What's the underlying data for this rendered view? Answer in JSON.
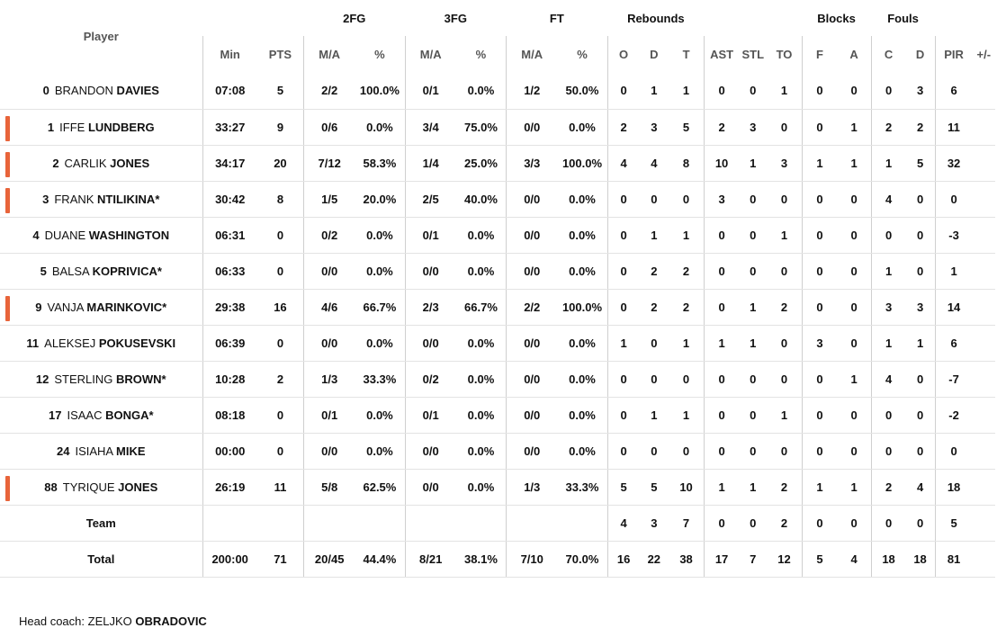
{
  "headers": {
    "player": "Player",
    "groups": {
      "fg2": "2FG",
      "fg3": "3FG",
      "ft": "FT",
      "reb": "Rebounds",
      "blk": "Blocks",
      "fouls": "Fouls"
    },
    "cols": [
      "Min",
      "PTS",
      "M/A",
      "%",
      "M/A",
      "%",
      "M/A",
      "%",
      "O",
      "D",
      "T",
      "AST",
      "STL",
      "TO",
      "F",
      "A",
      "C",
      "D",
      "PIR",
      "+/-"
    ]
  },
  "players": [
    {
      "num": "0",
      "first": "BRANDON",
      "last": "DAVIES",
      "marker": false,
      "stats": [
        "07:08",
        "5",
        "2/2",
        "100.0%",
        "0/1",
        "0.0%",
        "1/2",
        "50.0%",
        "0",
        "1",
        "1",
        "0",
        "0",
        "1",
        "0",
        "0",
        "0",
        "3",
        "6",
        ""
      ]
    },
    {
      "num": "1",
      "first": "IFFE",
      "last": "LUNDBERG",
      "marker": true,
      "stats": [
        "33:27",
        "9",
        "0/6",
        "0.0%",
        "3/4",
        "75.0%",
        "0/0",
        "0.0%",
        "2",
        "3",
        "5",
        "2",
        "3",
        "0",
        "0",
        "1",
        "2",
        "2",
        "11",
        ""
      ]
    },
    {
      "num": "2",
      "first": "CARLIK",
      "last": "JONES",
      "marker": true,
      "stats": [
        "34:17",
        "20",
        "7/12",
        "58.3%",
        "1/4",
        "25.0%",
        "3/3",
        "100.0%",
        "4",
        "4",
        "8",
        "10",
        "1",
        "3",
        "1",
        "1",
        "1",
        "5",
        "32",
        ""
      ]
    },
    {
      "num": "3",
      "first": "FRANK",
      "last": "NTILIKINA*",
      "marker": true,
      "stats": [
        "30:42",
        "8",
        "1/5",
        "20.0%",
        "2/5",
        "40.0%",
        "0/0",
        "0.0%",
        "0",
        "0",
        "0",
        "3",
        "0",
        "0",
        "0",
        "0",
        "4",
        "0",
        "0",
        ""
      ]
    },
    {
      "num": "4",
      "first": "DUANE",
      "last": "WASHINGTON",
      "marker": false,
      "stats": [
        "06:31",
        "0",
        "0/2",
        "0.0%",
        "0/1",
        "0.0%",
        "0/0",
        "0.0%",
        "0",
        "1",
        "1",
        "0",
        "0",
        "1",
        "0",
        "0",
        "0",
        "0",
        "-3",
        ""
      ]
    },
    {
      "num": "5",
      "first": "BALSA",
      "last": "KOPRIVICA*",
      "marker": false,
      "stats": [
        "06:33",
        "0",
        "0/0",
        "0.0%",
        "0/0",
        "0.0%",
        "0/0",
        "0.0%",
        "0",
        "2",
        "2",
        "0",
        "0",
        "0",
        "0",
        "0",
        "1",
        "0",
        "1",
        ""
      ]
    },
    {
      "num": "9",
      "first": "VANJA",
      "last": "MARINKOVIC*",
      "marker": true,
      "stats": [
        "29:38",
        "16",
        "4/6",
        "66.7%",
        "2/3",
        "66.7%",
        "2/2",
        "100.0%",
        "0",
        "2",
        "2",
        "0",
        "1",
        "2",
        "0",
        "0",
        "3",
        "3",
        "14",
        ""
      ]
    },
    {
      "num": "11",
      "first": "ALEKSEJ",
      "last": "POKUSEVSKI",
      "marker": false,
      "stats": [
        "06:39",
        "0",
        "0/0",
        "0.0%",
        "0/0",
        "0.0%",
        "0/0",
        "0.0%",
        "1",
        "0",
        "1",
        "1",
        "1",
        "0",
        "3",
        "0",
        "1",
        "1",
        "6",
        ""
      ]
    },
    {
      "num": "12",
      "first": "STERLING",
      "last": "BROWN*",
      "marker": false,
      "stats": [
        "10:28",
        "2",
        "1/3",
        "33.3%",
        "0/2",
        "0.0%",
        "0/0",
        "0.0%",
        "0",
        "0",
        "0",
        "0",
        "0",
        "0",
        "0",
        "1",
        "4",
        "0",
        "-7",
        ""
      ]
    },
    {
      "num": "17",
      "first": "ISAAC",
      "last": "BONGA*",
      "marker": false,
      "stats": [
        "08:18",
        "0",
        "0/1",
        "0.0%",
        "0/1",
        "0.0%",
        "0/0",
        "0.0%",
        "0",
        "1",
        "1",
        "0",
        "0",
        "1",
        "0",
        "0",
        "0",
        "0",
        "-2",
        ""
      ]
    },
    {
      "num": "24",
      "first": "ISIAHA",
      "last": "MIKE",
      "marker": false,
      "stats": [
        "00:00",
        "0",
        "0/0",
        "0.0%",
        "0/0",
        "0.0%",
        "0/0",
        "0.0%",
        "0",
        "0",
        "0",
        "0",
        "0",
        "0",
        "0",
        "0",
        "0",
        "0",
        "0",
        ""
      ]
    },
    {
      "num": "88",
      "first": "TYRIQUE",
      "last": "JONES",
      "marker": true,
      "stats": [
        "26:19",
        "11",
        "5/8",
        "62.5%",
        "0/0",
        "0.0%",
        "1/3",
        "33.3%",
        "5",
        "5",
        "10",
        "1",
        "1",
        "2",
        "1",
        "1",
        "2",
        "4",
        "18",
        ""
      ]
    }
  ],
  "team": {
    "label": "Team",
    "stats": [
      "",
      "",
      "",
      "",
      "",
      "",
      "",
      "",
      "4",
      "3",
      "7",
      "0",
      "0",
      "2",
      "0",
      "0",
      "0",
      "0",
      "5",
      ""
    ]
  },
  "total": {
    "label": "Total",
    "stats": [
      "200:00",
      "71",
      "20/45",
      "44.4%",
      "8/21",
      "38.1%",
      "7/10",
      "70.0%",
      "16",
      "22",
      "38",
      "17",
      "7",
      "12",
      "5",
      "4",
      "18",
      "18",
      "81",
      ""
    ]
  },
  "coach": {
    "label": "Head coach:",
    "first": "ZELJKO",
    "last": "OBRADOVIC"
  },
  "colors": {
    "marker": "#e8643a",
    "border": "#cfcfcf",
    "rowline": "#e3e3e3"
  }
}
